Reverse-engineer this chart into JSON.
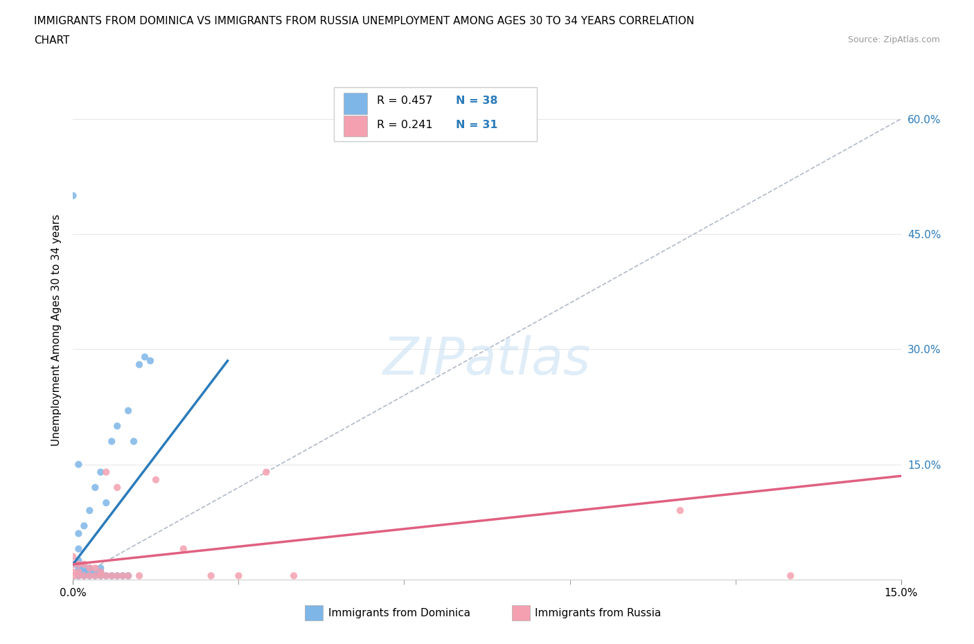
{
  "title_line1": "IMMIGRANTS FROM DOMINICA VS IMMIGRANTS FROM RUSSIA UNEMPLOYMENT AMONG AGES 30 TO 34 YEARS CORRELATION",
  "title_line2": "CHART",
  "source_text": "Source: ZipAtlas.com",
  "ylabel": "Unemployment Among Ages 30 to 34 years",
  "xlim": [
    0,
    0.15
  ],
  "ylim": [
    0,
    0.65
  ],
  "dominica_color": "#7eb6e8",
  "russia_color": "#f4a0b0",
  "dominica_line_color": "#2b7bba",
  "russia_line_color": "#e06080",
  "diag_color": "#b0b8c8",
  "legend_R_dominica": "R = 0.457",
  "legend_N_dominica": "N = 38",
  "legend_R_russia": "R = 0.241",
  "legend_N_russia": "N = 31",
  "background_color": "#ffffff",
  "grid_color": "#e8e8e8",
  "right_tick_color": "#2b7bba",
  "dominica_x": [
    0.0,
    0.001,
    0.001,
    0.001,
    0.001,
    0.001,
    0.001,
    0.001,
    0.001,
    0.002,
    0.002,
    0.002,
    0.002,
    0.003,
    0.003,
    0.003,
    0.003,
    0.004,
    0.004,
    0.004,
    0.005,
    0.005,
    0.005,
    0.005,
    0.006,
    0.006,
    0.007,
    0.007,
    0.008,
    0.008,
    0.009,
    0.01,
    0.01,
    0.011,
    0.012,
    0.013,
    0.014,
    0.0
  ],
  "dominica_y": [
    0.5,
    0.005,
    0.01,
    0.015,
    0.02,
    0.025,
    0.04,
    0.06,
    0.15,
    0.005,
    0.01,
    0.015,
    0.07,
    0.005,
    0.01,
    0.015,
    0.09,
    0.005,
    0.01,
    0.12,
    0.005,
    0.01,
    0.015,
    0.14,
    0.005,
    0.1,
    0.005,
    0.18,
    0.005,
    0.2,
    0.005,
    0.005,
    0.22,
    0.18,
    0.28,
    0.29,
    0.285,
    0.02
  ],
  "russia_x": [
    0.0,
    0.0,
    0.0,
    0.0,
    0.001,
    0.001,
    0.001,
    0.002,
    0.002,
    0.003,
    0.003,
    0.004,
    0.004,
    0.005,
    0.005,
    0.006,
    0.006,
    0.007,
    0.008,
    0.008,
    0.009,
    0.01,
    0.012,
    0.015,
    0.02,
    0.025,
    0.03,
    0.035,
    0.04,
    0.11,
    0.13
  ],
  "russia_y": [
    0.005,
    0.01,
    0.02,
    0.03,
    0.005,
    0.01,
    0.02,
    0.005,
    0.02,
    0.005,
    0.015,
    0.005,
    0.015,
    0.005,
    0.01,
    0.005,
    0.14,
    0.005,
    0.005,
    0.12,
    0.005,
    0.005,
    0.005,
    0.13,
    0.04,
    0.005,
    0.005,
    0.14,
    0.005,
    0.09,
    0.005
  ]
}
